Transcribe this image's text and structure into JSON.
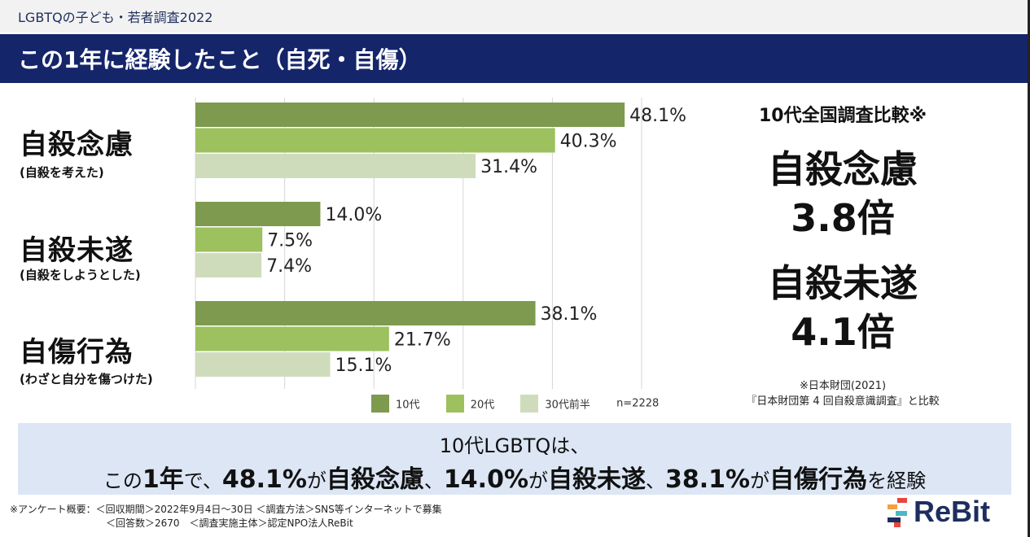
{
  "header": {
    "top_label": "LGBTQの子ども・若者調査2022",
    "title": "この1年に経験したこと（自死・自傷）"
  },
  "categories": [
    {
      "title": "自殺念慮",
      "subtitle": "(自殺を考えた)"
    },
    {
      "title": "自殺未遂",
      "subtitle": "(自殺をしようとした)"
    },
    {
      "title": "自傷行為",
      "subtitle": "(わざと自分を傷つけた)"
    }
  ],
  "chart_data": {
    "type": "bar",
    "orientation": "horizontal",
    "categories": [
      "自殺念慮",
      "自殺未遂",
      "自傷行為"
    ],
    "series": [
      {
        "name": "10代",
        "values": [
          48.1,
          14.0,
          38.1
        ],
        "labels": [
          "48.1%",
          "14.0%",
          "38.1%"
        ],
        "color": "#7d9a4f"
      },
      {
        "name": "20代",
        "values": [
          40.3,
          7.5,
          21.7
        ],
        "labels": [
          "40.3%",
          "7.5%",
          "21.7%"
        ],
        "color": "#9cc15e"
      },
      {
        "name": "30代前半",
        "values": [
          31.4,
          7.4,
          15.1
        ],
        "labels": [
          "31.4%",
          "7.4%",
          "15.1%"
        ],
        "color": "#cfdcbc"
      }
    ],
    "xlim": [
      0,
      50
    ],
    "grid": true,
    "legend_position": "bottom",
    "sample_note": "n=2228"
  },
  "comparison": {
    "heading": "10代全国調査比較※",
    "item1_name": "自殺念慮",
    "item1_ratio": "3.8倍",
    "item2_name": "自殺未遂",
    "item2_ratio": "4.1倍",
    "source_line1": "※日本財団(2021)",
    "source_line2": "『日本財団第 4 回自殺意識調査』と比較"
  },
  "summary": {
    "line1": "10代LGBTQは、",
    "parts": [
      {
        "text": "この",
        "style": "sm"
      },
      {
        "text": "1年",
        "style": "big"
      },
      {
        "text": "で、",
        "style": "sm"
      },
      {
        "text": "48.1%",
        "style": "big"
      },
      {
        "text": "が",
        "style": "sm"
      },
      {
        "text": "自殺念慮",
        "style": "big"
      },
      {
        "text": "、",
        "style": "sm"
      },
      {
        "text": "14.0%",
        "style": "big"
      },
      {
        "text": "が",
        "style": "sm"
      },
      {
        "text": "自殺未遂",
        "style": "big"
      },
      {
        "text": "、",
        "style": "sm"
      },
      {
        "text": "38.1%",
        "style": "big"
      },
      {
        "text": "が",
        "style": "sm"
      },
      {
        "text": "自傷行為",
        "style": "big"
      },
      {
        "text": "を経験",
        "style": "sm"
      }
    ]
  },
  "footnote": {
    "line1": "※アンケート概要：＜回収期間＞2022年9月4日〜30日 ＜調査方法＞SNS等インターネットで募集",
    "line2": "＜回答数＞2670　＜調査実施主体＞認定NPO法人ReBit"
  },
  "logo": {
    "text": "ReBit",
    "colors": [
      "#e8463c",
      "#f3a23a",
      "#4cb8c4",
      "#1d2e5e"
    ]
  },
  "colors": {
    "navy": "#15256a",
    "summary_bg": "#dce6f5"
  }
}
